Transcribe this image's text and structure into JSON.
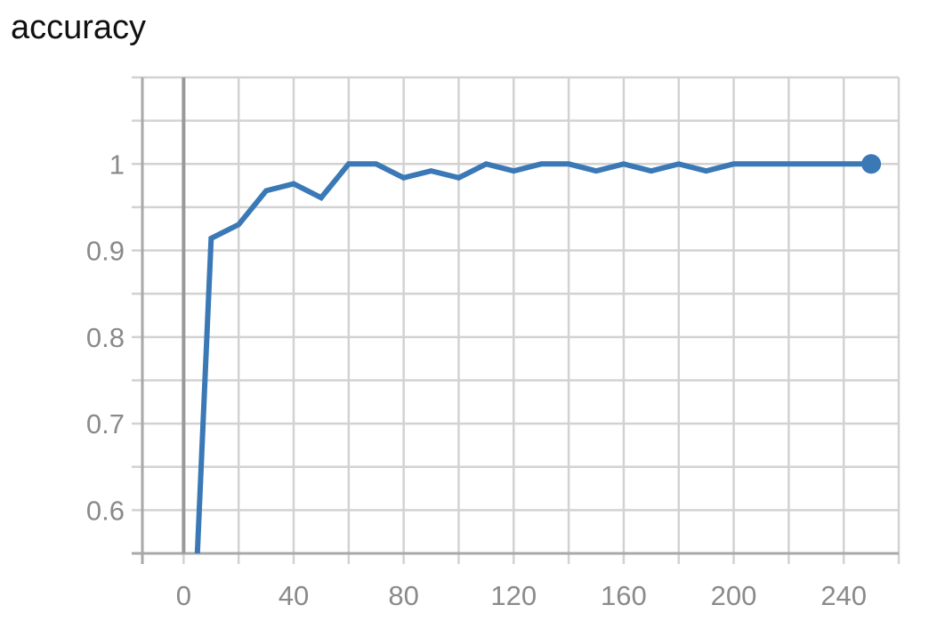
{
  "chart_data": {
    "type": "line",
    "title": "accuracy",
    "xlabel": "",
    "ylabel": "",
    "xlim": [
      -15,
      260
    ],
    "ylim": [
      0.55,
      1.1
    ],
    "x_ticks": [
      0,
      40,
      80,
      120,
      160,
      200,
      240
    ],
    "y_ticks": [
      0.6,
      0.7,
      0.8,
      0.9,
      1
    ],
    "x_grid_step": 20,
    "y_grid_step": 0.05,
    "grid": true,
    "series": [
      {
        "color": "#3a78b6",
        "x": [
          5,
          10,
          20,
          30,
          40,
          50,
          60,
          70,
          80,
          90,
          100,
          110,
          120,
          130,
          140,
          150,
          160,
          170,
          180,
          190,
          200,
          210,
          220,
          230,
          240,
          250
        ],
        "y": [
          0.55,
          0.914,
          0.93,
          0.969,
          0.977,
          0.961,
          1.0,
          1.0,
          0.984,
          0.992,
          0.984,
          1.0,
          0.992,
          1.0,
          1.0,
          0.992,
          1.0,
          0.992,
          1.0,
          0.992,
          1.0,
          1.0,
          1.0,
          1.0,
          1.0,
          1.0
        ]
      }
    ]
  }
}
